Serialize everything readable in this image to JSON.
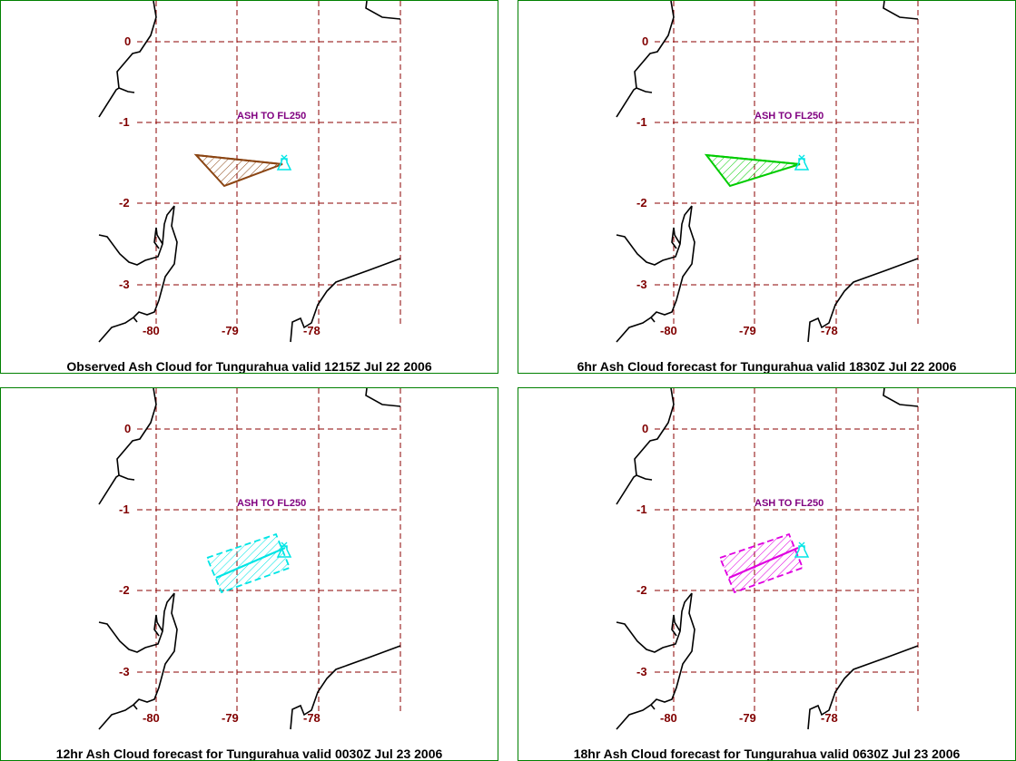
{
  "panels": [
    {
      "caption": "Observed Ash Cloud for Tungurahua valid 1215Z Jul 22 2006",
      "annotation": "ASH TO FL250",
      "cloud_color": "#8B4513",
      "cloud_shape": "triangle"
    },
    {
      "caption": "6hr Ash Cloud forecast for Tungurahua valid 1830Z Jul 22 2006",
      "annotation": "ASH TO FL250",
      "cloud_color": "#00CC00",
      "cloud_shape": "triangle"
    },
    {
      "caption": "12hr Ash Cloud forecast for Tungurahua valid 0030Z Jul 23 2006",
      "annotation": "ASH TO FL250",
      "cloud_color": "#00E5E5",
      "cloud_shape": "band"
    },
    {
      "caption": "18hr Ash Cloud forecast for Tungurahua valid 0630Z Jul 23 2006",
      "annotation": "ASH TO FL250",
      "cloud_color": "#E000E0",
      "cloud_shape": "band"
    }
  ],
  "grid": {
    "lat_labels": [
      "0",
      "-1",
      "-2",
      "-3"
    ],
    "lon_labels": [
      "-80",
      "-79",
      "-78"
    ],
    "grid_color": "#8B0000",
    "volcano_color": "#00E5E5",
    "coast_color": "#000000"
  }
}
